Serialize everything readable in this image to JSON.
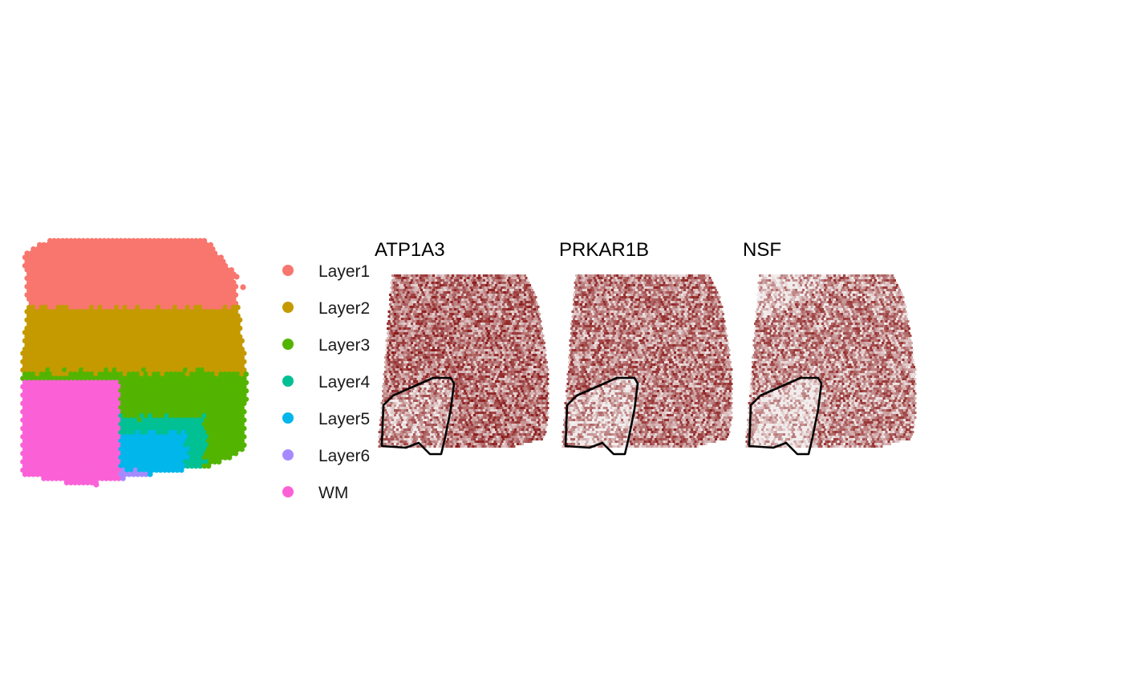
{
  "chart_data": [
    {
      "type": "scatter",
      "title": "",
      "layers": [
        "Layer1",
        "Layer2",
        "Layer3",
        "Layer4",
        "Layer5",
        "Layer6",
        "WM"
      ],
      "legend": {
        "placement": "right",
        "entries": [
          {
            "label": "Layer1",
            "color": "#F8766D"
          },
          {
            "label": "Layer2",
            "color": "#C49A00"
          },
          {
            "label": "Layer3",
            "color": "#53B400"
          },
          {
            "label": "Layer4",
            "color": "#00C094"
          },
          {
            "label": "Layer5",
            "color": "#00B6EB"
          },
          {
            "label": "Layer6",
            "color": "#A58AFF"
          },
          {
            "label": "WM",
            "color": "#FB61D7"
          }
        ]
      },
      "axes": "none",
      "grid": false
    },
    {
      "type": "heatmap",
      "title": "ATP1A3",
      "color_low": "#f2eded",
      "color_high": "#8b1a1a",
      "outlined_region": "WM",
      "axes": "none",
      "grid": false
    },
    {
      "type": "heatmap",
      "title": "PRKAR1B",
      "color_low": "#f2eded",
      "color_high": "#8b1a1a",
      "outlined_region": "WM",
      "axes": "none",
      "grid": false
    },
    {
      "type": "heatmap",
      "title": "NSF",
      "color_low": "#f2eded",
      "color_high": "#8b1a1a",
      "outlined_region": "WM",
      "axes": "none",
      "grid": false
    }
  ]
}
